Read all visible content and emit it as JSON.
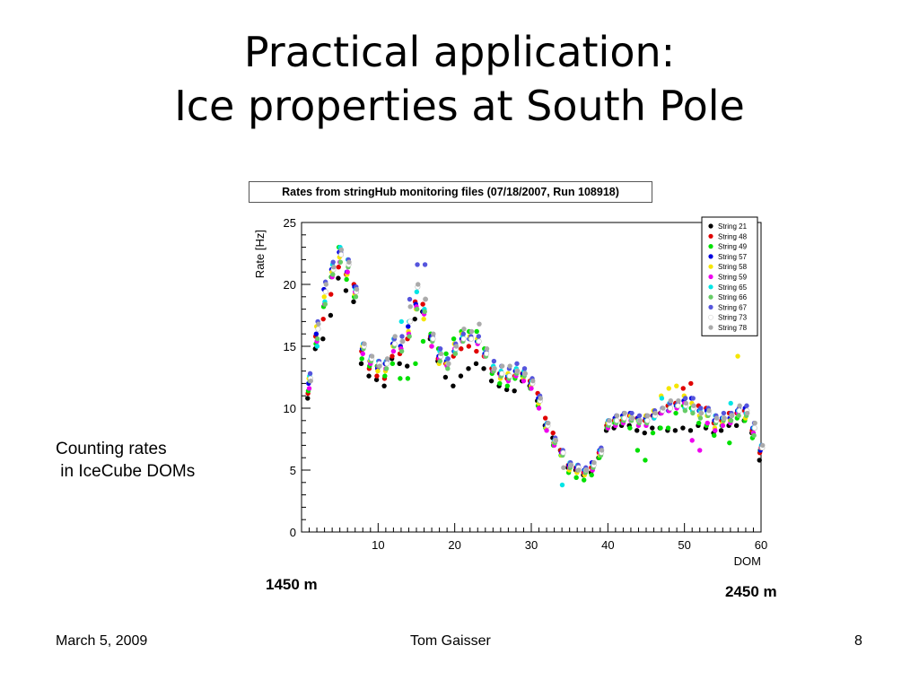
{
  "slide": {
    "title_line1": "Practical application:",
    "title_line2": "Ice properties at South Pole",
    "side_note_line1": "Counting rates",
    "side_note_line2": " in IceCube DOMs",
    "depth_top": "1450 m",
    "depth_bottom": "2450 m",
    "footer_date": "March 5, 2009",
    "footer_author": "Tom Gaisser",
    "footer_page": "8"
  },
  "chart_data": {
    "type": "scatter",
    "title": "Rates from stringHub monitoring files (07/18/2007, Run 108918)",
    "xlabel": "DOM",
    "ylabel": "Rate [Hz]",
    "xlim": [
      0,
      60
    ],
    "ylim": [
      0,
      25
    ],
    "xticks": [
      10,
      20,
      30,
      40,
      50,
      60
    ],
    "yticks": [
      0,
      5,
      10,
      15,
      20,
      25
    ],
    "grid": false,
    "legend_position": "top-right",
    "x": [
      1,
      2,
      3,
      4,
      5,
      6,
      7,
      8,
      9,
      10,
      11,
      12,
      13,
      14,
      15,
      16,
      17,
      18,
      19,
      20,
      21,
      22,
      23,
      24,
      25,
      26,
      27,
      28,
      29,
      30,
      31,
      32,
      33,
      34,
      35,
      36,
      37,
      38,
      39,
      40,
      41,
      42,
      43,
      44,
      45,
      46,
      47,
      48,
      49,
      50,
      51,
      52,
      53,
      54,
      55,
      56,
      57,
      58,
      59,
      60
    ],
    "series": [
      {
        "name": "String 21",
        "color": "#000000",
        "values": [
          10.8,
          14.8,
          15.6,
          17.5,
          20.5,
          19.5,
          18.6,
          13.6,
          12.6,
          12.3,
          11.8,
          14.0,
          13.6,
          13.4,
          17.2,
          17.8,
          15.6,
          13.8,
          12.5,
          11.8,
          12.6,
          13.2,
          13.6,
          13.2,
          12.2,
          11.8,
          11.5,
          11.4,
          12.2,
          11.8,
          10.6,
          8.6,
          7.6,
          6.6,
          5.2,
          5.0,
          4.6,
          4.8,
          6.0,
          8.2,
          8.4,
          8.6,
          8.6,
          8.2,
          8.0,
          8.4,
          8.4,
          8.2,
          8.2,
          8.4,
          8.2,
          8.6,
          8.4,
          8.0,
          8.2,
          8.6,
          8.6,
          9.0,
          8.0,
          5.8
        ]
      },
      {
        "name": "String 48",
        "color": "#e00000",
        "values": [
          11.2,
          15.8,
          17.2,
          19.2,
          21.4,
          20.8,
          20.0,
          14.6,
          13.2,
          12.6,
          12.4,
          14.2,
          14.4,
          15.6,
          18.6,
          18.4,
          15.8,
          14.0,
          13.6,
          14.2,
          14.8,
          15.0,
          14.6,
          14.2,
          13.2,
          12.8,
          12.4,
          12.6,
          12.8,
          12.2,
          11.2,
          9.2,
          8.0,
          6.6,
          5.4,
          5.2,
          4.8,
          5.2,
          6.4,
          8.6,
          9.0,
          9.0,
          9.4,
          9.2,
          9.0,
          9.4,
          9.6,
          10.2,
          10.4,
          11.6,
          12.0,
          10.2,
          10.0,
          8.8,
          9.0,
          9.6,
          9.6,
          9.8,
          8.2,
          6.4
        ]
      },
      {
        "name": "String 49",
        "color": "#00e000",
        "values": [
          11.4,
          15.2,
          18.2,
          20.6,
          23.0,
          20.4,
          19.0,
          14.0,
          13.4,
          13.4,
          12.6,
          13.6,
          12.4,
          12.4,
          13.6,
          15.4,
          16.0,
          14.8,
          14.4,
          15.6,
          16.2,
          16.2,
          16.2,
          14.8,
          12.8,
          12.0,
          11.8,
          12.4,
          12.6,
          11.6,
          10.2,
          8.4,
          7.0,
          6.2,
          4.8,
          4.4,
          4.2,
          4.6,
          6.0,
          8.4,
          8.8,
          8.8,
          8.4,
          6.6,
          5.8,
          8.0,
          8.4,
          8.4,
          9.6,
          10.2,
          10.0,
          8.8,
          8.6,
          7.8,
          8.6,
          7.2,
          9.2,
          9.0,
          7.6,
          6.6
        ]
      },
      {
        "name": "String 57",
        "color": "#0000e0",
        "values": [
          12.0,
          16.0,
          19.6,
          21.2,
          22.6,
          21.0,
          19.8,
          14.8,
          13.8,
          13.2,
          13.6,
          15.2,
          15.0,
          16.6,
          18.4,
          17.8,
          15.8,
          14.2,
          13.8,
          14.6,
          15.6,
          15.6,
          15.4,
          14.4,
          13.0,
          12.8,
          12.6,
          13.0,
          12.8,
          12.0,
          10.8,
          8.6,
          7.2,
          6.4,
          5.4,
          5.2,
          5.0,
          5.6,
          6.6,
          8.8,
          9.2,
          9.4,
          9.6,
          9.2,
          9.2,
          9.4,
          9.6,
          9.8,
          10.2,
          10.6,
          10.8,
          9.8,
          9.8,
          9.0,
          9.2,
          9.2,
          9.8,
          10.0,
          8.4,
          6.6
        ]
      },
      {
        "name": "String 58",
        "color": "#f5e600",
        "values": [
          12.4,
          16.6,
          19.0,
          21.0,
          22.2,
          20.8,
          19.2,
          15.0,
          13.8,
          13.0,
          13.0,
          15.0,
          14.8,
          16.2,
          18.0,
          17.2,
          15.0,
          13.6,
          13.6,
          15.2,
          16.0,
          15.8,
          15.6,
          14.2,
          13.0,
          12.4,
          12.8,
          12.6,
          12.4,
          11.8,
          10.4,
          8.4,
          7.2,
          6.2,
          5.0,
          4.8,
          4.6,
          5.0,
          6.2,
          8.8,
          9.0,
          9.2,
          9.4,
          9.0,
          9.4,
          9.8,
          11.0,
          11.6,
          11.8,
          11.0,
          10.4,
          9.4,
          9.4,
          8.4,
          8.8,
          9.0,
          14.2,
          9.2,
          8.0,
          6.8
        ]
      },
      {
        "name": "String 59",
        "color": "#ee00ee",
        "values": [
          11.6,
          15.4,
          18.4,
          20.6,
          21.8,
          21.0,
          19.4,
          14.4,
          13.6,
          13.4,
          13.2,
          14.6,
          14.8,
          16.0,
          18.2,
          17.6,
          15.0,
          14.0,
          13.4,
          14.8,
          15.4,
          15.6,
          15.2,
          14.2,
          13.0,
          12.6,
          12.2,
          12.6,
          12.2,
          11.6,
          10.0,
          8.2,
          7.0,
          6.4,
          5.2,
          5.0,
          4.8,
          5.0,
          6.4,
          8.4,
          8.6,
          8.8,
          9.0,
          8.6,
          8.6,
          9.2,
          9.6,
          9.8,
          10.0,
          10.4,
          7.4,
          6.6,
          8.8,
          8.2,
          8.6,
          8.8,
          9.6,
          9.6,
          8.0,
          6.8
        ]
      },
      {
        "name": "String 65",
        "color": "#00e5e5",
        "values": [
          12.6,
          15.0,
          18.6,
          21.6,
          23.0,
          22.0,
          19.6,
          15.2,
          14.0,
          13.8,
          13.8,
          15.6,
          17.0,
          17.0,
          19.4,
          18.0,
          15.6,
          14.6,
          14.0,
          14.6,
          15.8,
          15.6,
          15.4,
          14.6,
          13.4,
          13.0,
          12.6,
          13.2,
          13.0,
          12.2,
          10.6,
          8.8,
          7.4,
          3.8,
          5.6,
          5.4,
          5.0,
          5.4,
          6.6,
          9.0,
          9.0,
          9.2,
          9.2,
          9.0,
          9.0,
          9.2,
          10.8,
          10.4,
          10.2,
          10.0,
          9.8,
          9.8,
          9.6,
          9.4,
          9.2,
          10.4,
          9.8,
          9.6,
          8.4,
          7.0
        ]
      },
      {
        "name": "String 66",
        "color": "#66cc66",
        "values": [
          12.2,
          15.6,
          18.4,
          20.8,
          21.8,
          21.4,
          19.0,
          14.8,
          13.8,
          13.4,
          13.2,
          15.0,
          14.6,
          15.8,
          18.0,
          17.8,
          15.4,
          13.8,
          13.2,
          14.4,
          15.4,
          15.6,
          15.4,
          14.2,
          13.0,
          12.6,
          12.4,
          12.8,
          12.6,
          12.0,
          10.6,
          8.6,
          7.2,
          6.2,
          5.2,
          5.0,
          4.8,
          5.2,
          6.2,
          8.6,
          8.8,
          9.0,
          9.0,
          8.8,
          8.8,
          9.4,
          9.8,
          10.0,
          10.2,
          9.8,
          9.6,
          9.2,
          9.4,
          8.8,
          9.0,
          9.0,
          9.4,
          9.4,
          7.8,
          6.8
        ]
      },
      {
        "name": "String 67",
        "color": "#5555dd",
        "values": [
          12.8,
          17.0,
          20.2,
          21.8,
          22.6,
          22.0,
          19.8,
          15.2,
          14.2,
          13.8,
          13.8,
          15.6,
          15.8,
          18.8,
          21.6,
          21.6,
          15.8,
          14.8,
          14.0,
          15.2,
          16.0,
          15.8,
          15.8,
          14.6,
          13.8,
          13.4,
          13.2,
          13.6,
          13.2,
          12.4,
          11.0,
          8.8,
          7.6,
          6.6,
          5.6,
          5.4,
          5.2,
          5.6,
          6.8,
          9.0,
          9.4,
          9.6,
          9.6,
          9.4,
          9.4,
          9.8,
          10.0,
          10.4,
          10.4,
          10.8,
          10.8,
          10.0,
          10.0,
          9.4,
          9.6,
          9.6,
          10.0,
          10.2,
          8.8,
          7.0
        ]
      },
      {
        "name": "String 73",
        "color": "#ffffff",
        "values": [
          12.4,
          16.4,
          19.4,
          21.2,
          22.4,
          21.6,
          19.4,
          15.0,
          14.0,
          13.6,
          13.6,
          15.2,
          15.4,
          17.0,
          19.8,
          18.8,
          15.6,
          14.2,
          13.6,
          14.8,
          15.6,
          15.6,
          15.4,
          14.4,
          13.2,
          12.8,
          12.6,
          13.0,
          12.8,
          12.0,
          10.6,
          8.6,
          7.4,
          6.4,
          5.4,
          5.2,
          5.0,
          5.4,
          6.4,
          8.8,
          9.0,
          9.2,
          9.2,
          9.0,
          9.0,
          9.4,
          9.8,
          10.0,
          10.2,
          10.2,
          10.0,
          9.6,
          9.6,
          9.0,
          9.2,
          9.4,
          9.8,
          9.8,
          8.4,
          6.8
        ]
      },
      {
        "name": "String 78",
        "color": "#aaaaaa",
        "values": [
          12.2,
          16.8,
          20.0,
          21.4,
          22.8,
          21.8,
          19.6,
          15.2,
          14.2,
          13.4,
          14.0,
          15.8,
          15.4,
          18.2,
          20.0,
          18.8,
          16.0,
          14.4,
          13.6,
          15.0,
          16.4,
          16.2,
          16.8,
          14.8,
          13.2,
          13.4,
          13.4,
          13.0,
          12.8,
          12.2,
          10.8,
          8.8,
          7.4,
          5.2,
          5.4,
          5.0,
          5.0,
          5.6,
          6.6,
          9.0,
          9.4,
          9.6,
          9.2,
          9.0,
          9.4,
          9.6,
          10.0,
          10.6,
          10.6,
          10.4,
          10.2,
          9.6,
          9.8,
          9.2,
          9.2,
          9.4,
          10.2,
          9.6,
          8.8,
          7.0
        ]
      }
    ]
  }
}
